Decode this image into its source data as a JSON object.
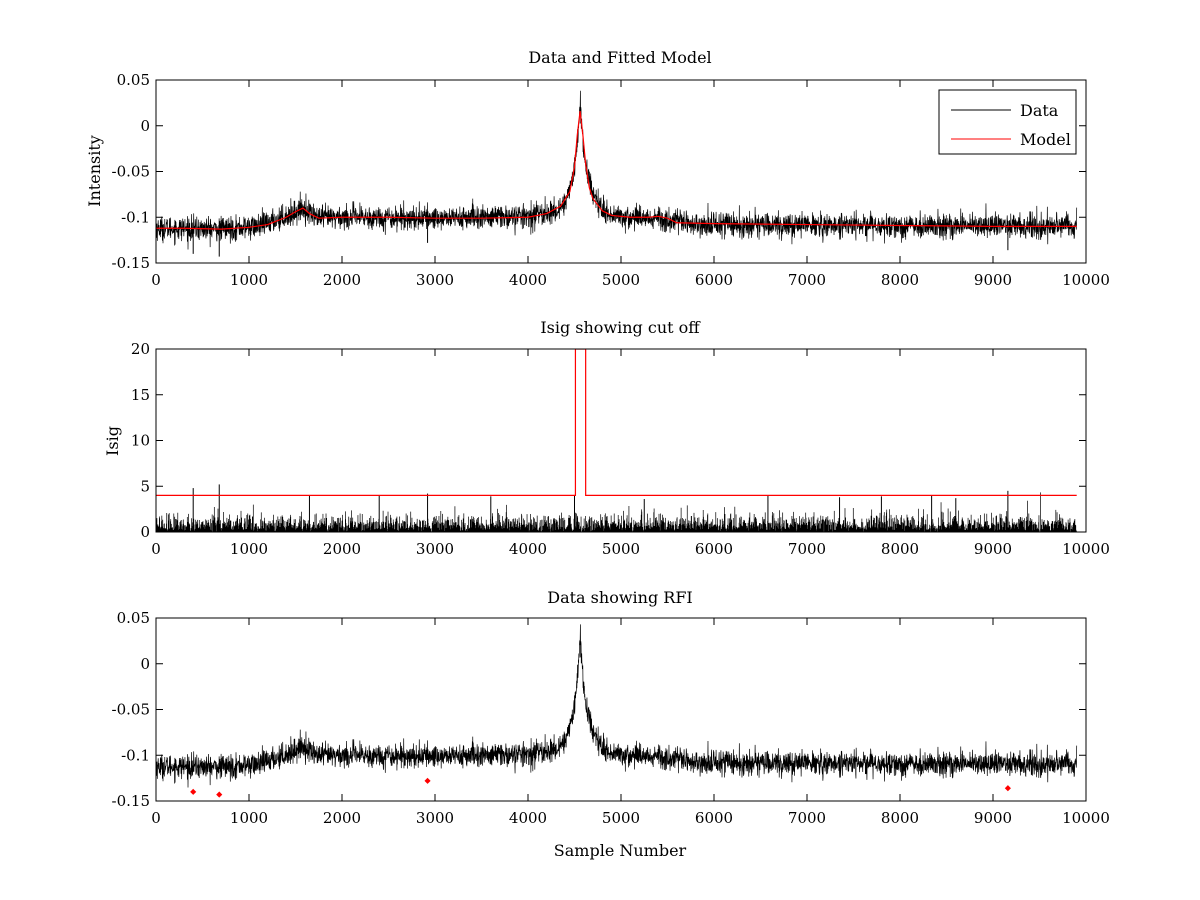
{
  "chart_data": [
    {
      "type": "line",
      "title": "Data and Fitted Model",
      "xlabel": "",
      "ylabel": "Intensity",
      "xlim": [
        0,
        10000
      ],
      "ylim": [
        -0.15,
        0.05
      ],
      "xticks": [
        0,
        1000,
        2000,
        3000,
        4000,
        5000,
        6000,
        7000,
        8000,
        9000,
        10000
      ],
      "xtick_labels": [
        "0",
        "1000",
        "2000",
        "3000",
        "4000",
        "5000",
        "6000",
        "7000",
        "8000",
        "9000",
        "10000"
      ],
      "yticks": [
        -0.15,
        -0.1,
        -0.05,
        0,
        0.05
      ],
      "ytick_labels": [
        "-0.15",
        "-0.1",
        "-0.05",
        "0",
        "0.05"
      ],
      "grid": false,
      "legend": {
        "position": "top-right",
        "entries": [
          {
            "label": "Data",
            "color": "#000000"
          },
          {
            "label": "Model",
            "color": "#ff0000"
          }
        ]
      },
      "series": [
        {
          "name": "Data",
          "color": "#000000",
          "kind": "noisy-signal",
          "x_range": [
            0,
            9900
          ],
          "noise_sd": 0.0065,
          "baseline_knots": {
            "x": [
              0,
              700,
              1100,
              1450,
              1580,
              1750,
              2000,
              3000,
              4000,
              4300,
              4420,
              4500,
              4560,
              4620,
              4700,
              4800,
              5000,
              5300,
              5500,
              5700,
              6000,
              9900
            ],
            "y": [
              -0.112,
              -0.113,
              -0.11,
              -0.097,
              -0.09,
              -0.101,
              -0.1,
              -0.101,
              -0.099,
              -0.094,
              -0.08,
              -0.05,
              0.02,
              -0.045,
              -0.075,
              -0.092,
              -0.1,
              -0.1,
              -0.102,
              -0.107,
              -0.108,
              -0.11
            ]
          },
          "rfi_spikes": [
            {
              "x": 400,
              "y": -0.14
            },
            {
              "x": 680,
              "y": -0.143
            },
            {
              "x": 2920,
              "y": -0.128
            },
            {
              "x": 9160,
              "y": -0.136
            }
          ]
        },
        {
          "name": "Model",
          "color": "#ff0000",
          "kind": "line",
          "x": [
            0,
            300,
            700,
            1000,
            1200,
            1400,
            1500,
            1580,
            1650,
            1750,
            2000,
            2500,
            3000,
            3500,
            4000,
            4200,
            4350,
            4450,
            4500,
            4530,
            4560,
            4590,
            4620,
            4660,
            4700,
            4800,
            4900,
            5100,
            5300,
            5400,
            5500,
            5600,
            6000,
            7000,
            8000,
            9000,
            9900
          ],
          "y": [
            -0.112,
            -0.112,
            -0.113,
            -0.111,
            -0.108,
            -0.1,
            -0.094,
            -0.09,
            -0.096,
            -0.101,
            -0.1,
            -0.1,
            -0.101,
            -0.101,
            -0.1,
            -0.096,
            -0.088,
            -0.072,
            -0.045,
            -0.01,
            0.016,
            -0.01,
            -0.042,
            -0.068,
            -0.08,
            -0.093,
            -0.098,
            -0.1,
            -0.1,
            -0.099,
            -0.101,
            -0.106,
            -0.107,
            -0.108,
            -0.109,
            -0.11,
            -0.11
          ]
        }
      ]
    },
    {
      "type": "line",
      "title": "Isig showing cut off",
      "xlabel": "",
      "ylabel": "Isig",
      "xlim": [
        0,
        10000
      ],
      "ylim": [
        0,
        20
      ],
      "xticks": [
        0,
        1000,
        2000,
        3000,
        4000,
        5000,
        6000,
        7000,
        8000,
        9000,
        10000
      ],
      "xtick_labels": [
        "0",
        "1000",
        "2000",
        "3000",
        "4000",
        "5000",
        "6000",
        "7000",
        "8000",
        "9000",
        "10000"
      ],
      "yticks": [
        0,
        5,
        10,
        15,
        20
      ],
      "ytick_labels": [
        "0",
        "5",
        "10",
        "15",
        "20"
      ],
      "grid": false,
      "series": [
        {
          "name": "Isig",
          "color": "#000000",
          "kind": "noise-bars",
          "x_range": [
            0,
            9900
          ],
          "typical_max": 2.2,
          "spikes": [
            {
              "x": 400,
              "y": 4.8
            },
            {
              "x": 680,
              "y": 5.2
            },
            {
              "x": 1650,
              "y": 4.0
            },
            {
              "x": 2400,
              "y": 4.0
            },
            {
              "x": 2920,
              "y": 4.2
            },
            {
              "x": 3600,
              "y": 3.9
            },
            {
              "x": 4500,
              "y": 4.0
            },
            {
              "x": 5250,
              "y": 3.6
            },
            {
              "x": 6580,
              "y": 4.0
            },
            {
              "x": 7350,
              "y": 3.8
            },
            {
              "x": 7800,
              "y": 3.9
            },
            {
              "x": 8340,
              "y": 4.0
            },
            {
              "x": 8600,
              "y": 3.7
            },
            {
              "x": 9160,
              "y": 4.5
            }
          ]
        },
        {
          "name": "Cut off",
          "color": "#ff0000",
          "kind": "line",
          "x": [
            0,
            4510,
            4510,
            4620,
            4620,
            9900
          ],
          "y": [
            4,
            4,
            20,
            20,
            4,
            4
          ]
        }
      ]
    },
    {
      "type": "scatter",
      "title": "Data showing RFI",
      "xlabel": "Sample Number",
      "ylabel": "",
      "xlim": [
        0,
        10000
      ],
      "ylim": [
        -0.15,
        0.05
      ],
      "xticks": [
        0,
        1000,
        2000,
        3000,
        4000,
        5000,
        6000,
        7000,
        8000,
        9000,
        10000
      ],
      "xtick_labels": [
        "0",
        "1000",
        "2000",
        "3000",
        "4000",
        "5000",
        "6000",
        "7000",
        "8000",
        "9000",
        "10000"
      ],
      "yticks": [
        -0.15,
        -0.1,
        -0.05,
        0,
        0.05
      ],
      "ytick_labels": [
        "-0.15",
        "-0.1",
        "-0.05",
        "0",
        "0.05"
      ],
      "grid": false,
      "series": [
        {
          "name": "Data",
          "color": "#000000",
          "kind": "noisy-signal",
          "x_range": [
            0,
            9900
          ],
          "noise_sd": 0.0065,
          "baseline_knots": {
            "x": [
              0,
              700,
              1100,
              1450,
              1580,
              1750,
              2000,
              3000,
              4000,
              4300,
              4420,
              4500,
              4560,
              4620,
              4700,
              4800,
              5000,
              5300,
              5500,
              5700,
              6000,
              9900
            ],
            "y": [
              -0.112,
              -0.113,
              -0.11,
              -0.097,
              -0.09,
              -0.101,
              -0.1,
              -0.101,
              -0.099,
              -0.094,
              -0.08,
              -0.05,
              0.025,
              -0.045,
              -0.075,
              -0.092,
              -0.1,
              -0.1,
              -0.102,
              -0.107,
              -0.108,
              -0.11
            ]
          }
        },
        {
          "name": "RFI",
          "color": "#ff0000",
          "kind": "markers",
          "x": [
            400,
            680,
            2920,
            9160
          ],
          "y": [
            -0.14,
            -0.143,
            -0.128,
            -0.136
          ]
        }
      ]
    }
  ]
}
